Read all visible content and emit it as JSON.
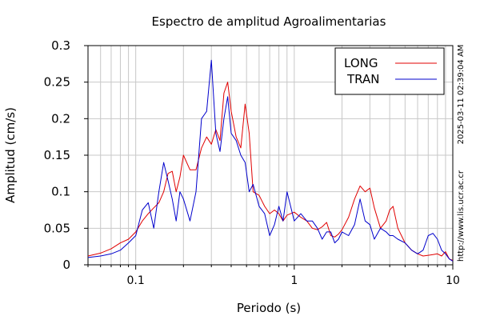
{
  "chart_data": {
    "type": "line",
    "title": "Espectro de amplitud Agroalimentarias",
    "xlabel": "Periodo (s)",
    "ylabel": "Amplitud (cm/s)",
    "x_scale": "log",
    "xlim": [
      0.05,
      10
    ],
    "ylim": [
      0,
      0.3
    ],
    "x_ticks": [
      0.1,
      1,
      10
    ],
    "x_tick_labels": [
      "0.1",
      "1",
      "10"
    ],
    "y_ticks": [
      0,
      0.05,
      0.1,
      0.15,
      0.2,
      0.25,
      0.3
    ],
    "y_tick_labels": [
      "0",
      "0.05",
      "0.1",
      "0.15",
      "0.2",
      "0.25",
      "0.3"
    ],
    "grid": true,
    "legend_position": "top-right",
    "series": [
      {
        "name": "LONG",
        "color": "#e00000",
        "x": [
          0.05,
          0.06,
          0.07,
          0.08,
          0.09,
          0.1,
          0.11,
          0.12,
          0.13,
          0.14,
          0.15,
          0.16,
          0.17,
          0.18,
          0.19,
          0.2,
          0.22,
          0.24,
          0.26,
          0.28,
          0.3,
          0.32,
          0.34,
          0.36,
          0.38,
          0.4,
          0.43,
          0.46,
          0.49,
          0.52,
          0.55,
          0.6,
          0.65,
          0.7,
          0.75,
          0.8,
          0.85,
          0.9,
          1.0,
          1.1,
          1.2,
          1.3,
          1.4,
          1.5,
          1.6,
          1.7,
          1.8,
          1.9,
          2.0,
          2.2,
          2.4,
          2.6,
          2.8,
          3.0,
          3.2,
          3.5,
          3.8,
          4.0,
          4.2,
          4.5,
          5.0,
          5.5,
          6.0,
          6.5,
          7.0,
          7.5,
          8.0,
          8.5,
          9.0,
          9.5,
          10.0
        ],
        "y": [
          0.012,
          0.016,
          0.022,
          0.03,
          0.035,
          0.045,
          0.06,
          0.07,
          0.078,
          0.085,
          0.1,
          0.125,
          0.128,
          0.1,
          0.12,
          0.15,
          0.13,
          0.13,
          0.16,
          0.175,
          0.165,
          0.185,
          0.17,
          0.235,
          0.25,
          0.21,
          0.175,
          0.16,
          0.22,
          0.18,
          0.1,
          0.095,
          0.08,
          0.07,
          0.075,
          0.07,
          0.06,
          0.068,
          0.072,
          0.065,
          0.06,
          0.05,
          0.048,
          0.052,
          0.058,
          0.04,
          0.038,
          0.042,
          0.048,
          0.065,
          0.09,
          0.108,
          0.1,
          0.105,
          0.078,
          0.05,
          0.06,
          0.075,
          0.08,
          0.05,
          0.03,
          0.02,
          0.015,
          0.012,
          0.013,
          0.014,
          0.015,
          0.012,
          0.018,
          0.008,
          0.006
        ]
      },
      {
        "name": "TRAN",
        "color": "#0000cc",
        "x": [
          0.05,
          0.06,
          0.07,
          0.08,
          0.09,
          0.1,
          0.11,
          0.12,
          0.13,
          0.14,
          0.15,
          0.16,
          0.17,
          0.18,
          0.19,
          0.2,
          0.22,
          0.24,
          0.26,
          0.28,
          0.3,
          0.32,
          0.34,
          0.36,
          0.38,
          0.4,
          0.43,
          0.46,
          0.49,
          0.52,
          0.55,
          0.6,
          0.65,
          0.7,
          0.75,
          0.8,
          0.85,
          0.9,
          1.0,
          1.1,
          1.2,
          1.3,
          1.4,
          1.5,
          1.6,
          1.7,
          1.8,
          1.9,
          2.0,
          2.2,
          2.4,
          2.6,
          2.8,
          3.0,
          3.2,
          3.5,
          3.8,
          4.0,
          4.2,
          4.5,
          5.0,
          5.5,
          6.0,
          6.5,
          7.0,
          7.5,
          8.0,
          8.5,
          9.0,
          9.5,
          10.0
        ],
        "y": [
          0.01,
          0.012,
          0.015,
          0.02,
          0.03,
          0.04,
          0.075,
          0.085,
          0.05,
          0.1,
          0.14,
          0.115,
          0.09,
          0.06,
          0.1,
          0.09,
          0.06,
          0.1,
          0.2,
          0.21,
          0.28,
          0.18,
          0.155,
          0.2,
          0.23,
          0.18,
          0.17,
          0.15,
          0.14,
          0.1,
          0.11,
          0.08,
          0.07,
          0.04,
          0.055,
          0.08,
          0.06,
          0.1,
          0.06,
          0.07,
          0.06,
          0.06,
          0.05,
          0.035,
          0.045,
          0.045,
          0.03,
          0.035,
          0.045,
          0.04,
          0.055,
          0.09,
          0.06,
          0.055,
          0.035,
          0.05,
          0.045,
          0.04,
          0.04,
          0.035,
          0.03,
          0.02,
          0.015,
          0.02,
          0.04,
          0.043,
          0.035,
          0.02,
          0.015,
          0.008,
          0.005
        ]
      }
    ]
  },
  "side_labels": {
    "timestamp": "2025-03-11 02:39:04 AM",
    "website": "http://www.lis.ucr.ac.cr"
  }
}
